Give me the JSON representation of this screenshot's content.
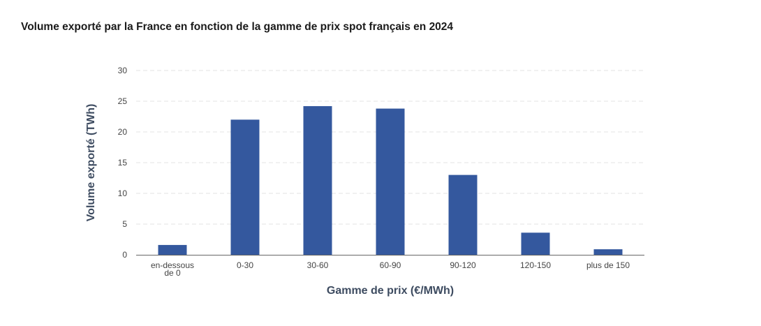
{
  "chart_data": {
    "type": "bar",
    "title": "Volume exporté par la France en fonction de la gamme de prix spot français en 2024",
    "xlabel": "Gamme de prix (€/MWh)",
    "ylabel": "Volume exporté (TWh)",
    "categories": [
      [
        "en-dessous",
        "de 0"
      ],
      [
        "0-30"
      ],
      [
        "30-60"
      ],
      [
        "60-90"
      ],
      [
        "90-120"
      ],
      [
        "120-150"
      ],
      [
        "plus de 150"
      ]
    ],
    "values": [
      1.6,
      22.0,
      24.2,
      23.8,
      13.0,
      3.6,
      0.9
    ],
    "ylim": [
      0,
      30
    ],
    "yticks": [
      0,
      5,
      10,
      15,
      20,
      25,
      30
    ],
    "grid": true,
    "bar_color": "#34589e",
    "grid_color": "#e3e3e3",
    "axis_color": "#666666"
  }
}
